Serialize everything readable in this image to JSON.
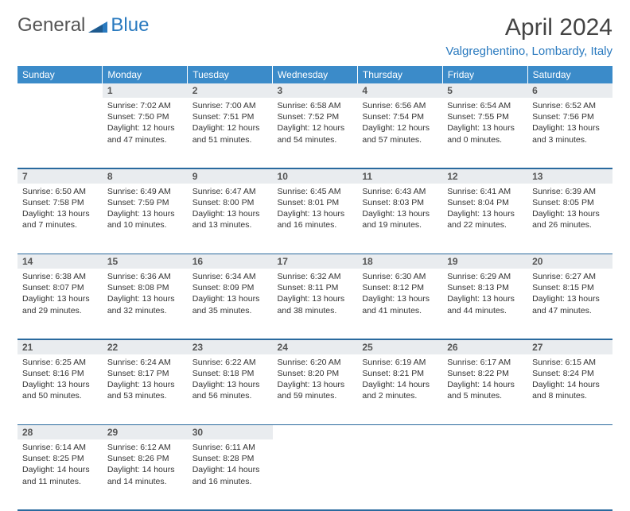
{
  "brand": {
    "part1": "General",
    "part2": "Blue"
  },
  "title": "April 2024",
  "location": "Valgreghentino, Lombardy, Italy",
  "colors": {
    "header_bg": "#3b8bc9",
    "header_text": "#ffffff",
    "accent": "#2a7abf",
    "daynum_bg": "#e9ecef",
    "rule": "#2a6a9e",
    "body_text": "#333333"
  },
  "weekdays": [
    "Sunday",
    "Monday",
    "Tuesday",
    "Wednesday",
    "Thursday",
    "Friday",
    "Saturday"
  ],
  "weeks": [
    [
      null,
      {
        "n": "1",
        "sr": "7:02 AM",
        "ss": "7:50 PM",
        "dl": "12 hours and 47 minutes."
      },
      {
        "n": "2",
        "sr": "7:00 AM",
        "ss": "7:51 PM",
        "dl": "12 hours and 51 minutes."
      },
      {
        "n": "3",
        "sr": "6:58 AM",
        "ss": "7:52 PM",
        "dl": "12 hours and 54 minutes."
      },
      {
        "n": "4",
        "sr": "6:56 AM",
        "ss": "7:54 PM",
        "dl": "12 hours and 57 minutes."
      },
      {
        "n": "5",
        "sr": "6:54 AM",
        "ss": "7:55 PM",
        "dl": "13 hours and 0 minutes."
      },
      {
        "n": "6",
        "sr": "6:52 AM",
        "ss": "7:56 PM",
        "dl": "13 hours and 3 minutes."
      }
    ],
    [
      {
        "n": "7",
        "sr": "6:50 AM",
        "ss": "7:58 PM",
        "dl": "13 hours and 7 minutes."
      },
      {
        "n": "8",
        "sr": "6:49 AM",
        "ss": "7:59 PM",
        "dl": "13 hours and 10 minutes."
      },
      {
        "n": "9",
        "sr": "6:47 AM",
        "ss": "8:00 PM",
        "dl": "13 hours and 13 minutes."
      },
      {
        "n": "10",
        "sr": "6:45 AM",
        "ss": "8:01 PM",
        "dl": "13 hours and 16 minutes."
      },
      {
        "n": "11",
        "sr": "6:43 AM",
        "ss": "8:03 PM",
        "dl": "13 hours and 19 minutes."
      },
      {
        "n": "12",
        "sr": "6:41 AM",
        "ss": "8:04 PM",
        "dl": "13 hours and 22 minutes."
      },
      {
        "n": "13",
        "sr": "6:39 AM",
        "ss": "8:05 PM",
        "dl": "13 hours and 26 minutes."
      }
    ],
    [
      {
        "n": "14",
        "sr": "6:38 AM",
        "ss": "8:07 PM",
        "dl": "13 hours and 29 minutes."
      },
      {
        "n": "15",
        "sr": "6:36 AM",
        "ss": "8:08 PM",
        "dl": "13 hours and 32 minutes."
      },
      {
        "n": "16",
        "sr": "6:34 AM",
        "ss": "8:09 PM",
        "dl": "13 hours and 35 minutes."
      },
      {
        "n": "17",
        "sr": "6:32 AM",
        "ss": "8:11 PM",
        "dl": "13 hours and 38 minutes."
      },
      {
        "n": "18",
        "sr": "6:30 AM",
        "ss": "8:12 PM",
        "dl": "13 hours and 41 minutes."
      },
      {
        "n": "19",
        "sr": "6:29 AM",
        "ss": "8:13 PM",
        "dl": "13 hours and 44 minutes."
      },
      {
        "n": "20",
        "sr": "6:27 AM",
        "ss": "8:15 PM",
        "dl": "13 hours and 47 minutes."
      }
    ],
    [
      {
        "n": "21",
        "sr": "6:25 AM",
        "ss": "8:16 PM",
        "dl": "13 hours and 50 minutes."
      },
      {
        "n": "22",
        "sr": "6:24 AM",
        "ss": "8:17 PM",
        "dl": "13 hours and 53 minutes."
      },
      {
        "n": "23",
        "sr": "6:22 AM",
        "ss": "8:18 PM",
        "dl": "13 hours and 56 minutes."
      },
      {
        "n": "24",
        "sr": "6:20 AM",
        "ss": "8:20 PM",
        "dl": "13 hours and 59 minutes."
      },
      {
        "n": "25",
        "sr": "6:19 AM",
        "ss": "8:21 PM",
        "dl": "14 hours and 2 minutes."
      },
      {
        "n": "26",
        "sr": "6:17 AM",
        "ss": "8:22 PM",
        "dl": "14 hours and 5 minutes."
      },
      {
        "n": "27",
        "sr": "6:15 AM",
        "ss": "8:24 PM",
        "dl": "14 hours and 8 minutes."
      }
    ],
    [
      {
        "n": "28",
        "sr": "6:14 AM",
        "ss": "8:25 PM",
        "dl": "14 hours and 11 minutes."
      },
      {
        "n": "29",
        "sr": "6:12 AM",
        "ss": "8:26 PM",
        "dl": "14 hours and 14 minutes."
      },
      {
        "n": "30",
        "sr": "6:11 AM",
        "ss": "8:28 PM",
        "dl": "14 hours and 16 minutes."
      },
      null,
      null,
      null,
      null
    ]
  ],
  "labels": {
    "sunrise": "Sunrise:",
    "sunset": "Sunset:",
    "daylight": "Daylight:"
  }
}
